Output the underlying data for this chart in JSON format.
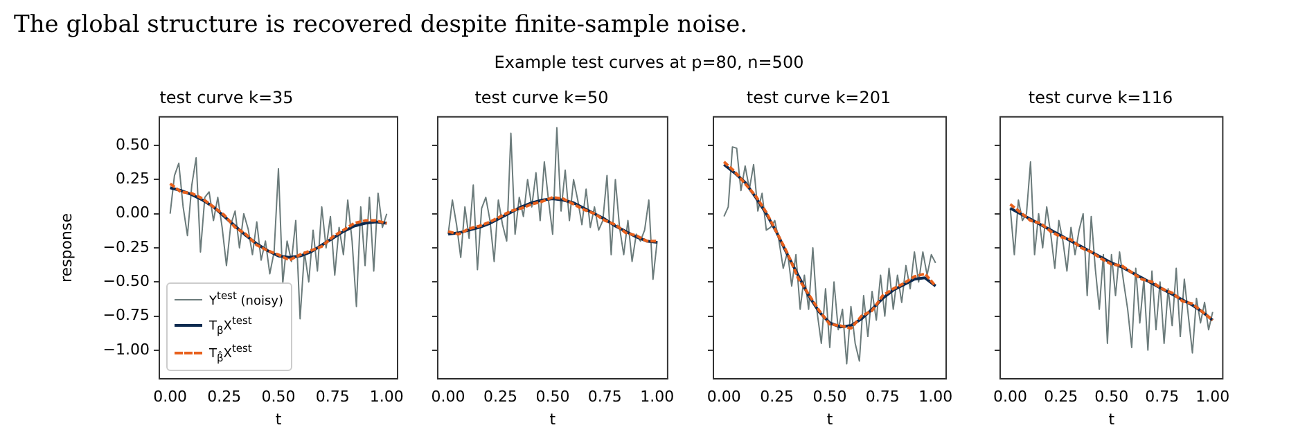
{
  "chart_data": [
    {
      "type": "line",
      "title": "test curve k=35",
      "xlabel": "t",
      "ylabel": "response",
      "legend": "bottom left",
      "annotations": [
        "The global structure is recovered despite finite-sample noise.",
        "Example test curves at p=80, n=500"
      ],
      "xlim": [
        -0.05,
        1.05
      ],
      "ylim": [
        -1.21,
        0.71
      ],
      "xticks": [
        {
          "value": 0,
          "label": "0.00"
        },
        {
          "value": 0.25,
          "label": "0.25"
        },
        {
          "value": 0.5,
          "label": "0.50"
        },
        {
          "value": 0.75,
          "label": "0.75"
        },
        {
          "value": 1,
          "label": "1.00"
        }
      ],
      "yticks": [
        {
          "value": -1,
          "label": "−1.00"
        },
        {
          "value": -0.75,
          "label": "−0.75"
        },
        {
          "value": -0.5,
          "label": "−0.50"
        },
        {
          "value": -0.25,
          "label": "−0.25"
        },
        {
          "value": 0,
          "label": "0.00"
        },
        {
          "value": 0.25,
          "label": "0.25"
        },
        {
          "value": 0.5,
          "label": "0.50"
        }
      ],
      "series": [
        {
          "name": "Y$^{test}$ (noisy)",
          "color": "#6b7b7b",
          "x": [
            0,
            0.02,
            0.04,
            0.06,
            0.08,
            0.1,
            0.12,
            0.14,
            0.16,
            0.18,
            0.2,
            0.22,
            0.24,
            0.26,
            0.28,
            0.3,
            0.32,
            0.34,
            0.36,
            0.38,
            0.4,
            0.42,
            0.44,
            0.46,
            0.48,
            0.5,
            0.52,
            0.54,
            0.56,
            0.58,
            0.6,
            0.62,
            0.64,
            0.66,
            0.68,
            0.7,
            0.72,
            0.74,
            0.76,
            0.78,
            0.8,
            0.82,
            0.84,
            0.86,
            0.88,
            0.9,
            0.92,
            0.94,
            0.96,
            0.98,
            1
          ],
          "values": [
            0.0,
            0.28,
            0.37,
            0.05,
            -0.16,
            0.21,
            0.41,
            -0.28,
            0.12,
            0.16,
            -0.05,
            0.12,
            -0.1,
            -0.38,
            -0.08,
            0.02,
            -0.25,
            0.0,
            -0.11,
            -0.3,
            -0.06,
            -0.34,
            -0.2,
            -0.44,
            -0.28,
            0.33,
            -0.51,
            -0.2,
            -0.35,
            -0.05,
            -0.77,
            -0.28,
            -0.5,
            -0.12,
            -0.42,
            0.05,
            -0.25,
            -0.02,
            -0.45,
            -0.1,
            -0.3,
            0.1,
            -0.2,
            -0.68,
            0.05,
            -0.38,
            0.12,
            -0.42,
            0.15,
            -0.1,
            0.0
          ]
        },
        {
          "name": "T$_{β}$X$^{test}$",
          "color": "#0d2a4f",
          "x": [
            0,
            0.05,
            0.1,
            0.15,
            0.2,
            0.25,
            0.3,
            0.35,
            0.4,
            0.45,
            0.5,
            0.55,
            0.6,
            0.65,
            0.7,
            0.75,
            0.8,
            0.85,
            0.9,
            0.95,
            1
          ],
          "values": [
            0.19,
            0.17,
            0.14,
            0.1,
            0.05,
            -0.02,
            -0.09,
            -0.16,
            -0.22,
            -0.27,
            -0.31,
            -0.32,
            -0.31,
            -0.28,
            -0.23,
            -0.18,
            -0.13,
            -0.09,
            -0.07,
            -0.06,
            -0.07
          ]
        },
        {
          "name": "T$_{β̂}$X$^{test}$",
          "color": "#e8601c",
          "line_style": "dashed",
          "x": [
            0,
            0.05,
            0.1,
            0.15,
            0.2,
            0.25,
            0.3,
            0.35,
            0.4,
            0.45,
            0.5,
            0.55,
            0.6,
            0.65,
            0.7,
            0.75,
            0.8,
            0.85,
            0.9,
            0.95,
            1
          ],
          "values": [
            0.22,
            0.16,
            0.15,
            0.11,
            0.05,
            -0.01,
            -0.1,
            -0.15,
            -0.23,
            -0.27,
            -0.3,
            -0.34,
            -0.3,
            -0.27,
            -0.24,
            -0.17,
            -0.12,
            -0.07,
            -0.05,
            -0.05,
            -0.07
          ]
        }
      ]
    },
    {
      "type": "line",
      "title": "test curve k=50",
      "xlabel": "t",
      "tick_labels": "x",
      "xlim": [
        -0.05,
        1.05
      ],
      "ylim": [
        -1.21,
        0.71
      ],
      "xticks": [
        {
          "value": 0,
          "label": "0.00"
        },
        {
          "value": 0.25,
          "label": "0.25"
        },
        {
          "value": 0.5,
          "label": "0.50"
        },
        {
          "value": 0.75,
          "label": "0.75"
        },
        {
          "value": 1,
          "label": "1.00"
        }
      ],
      "yticks": [
        {
          "value": -1,
          "label": null
        },
        {
          "value": -0.75,
          "label": null
        },
        {
          "value": -0.5,
          "label": null
        },
        {
          "value": -0.25,
          "label": null
        },
        {
          "value": 0,
          "label": null
        },
        {
          "value": 0.25,
          "label": null
        },
        {
          "value": 0.5,
          "label": null
        }
      ],
      "series": [
        {
          "color": "#6b7b7b",
          "x": [
            0,
            0.02,
            0.04,
            0.06,
            0.08,
            0.1,
            0.12,
            0.14,
            0.16,
            0.18,
            0.2,
            0.22,
            0.24,
            0.26,
            0.28,
            0.3,
            0.32,
            0.34,
            0.36,
            0.38,
            0.4,
            0.42,
            0.44,
            0.46,
            0.48,
            0.5,
            0.52,
            0.54,
            0.56,
            0.58,
            0.6,
            0.62,
            0.64,
            0.66,
            0.68,
            0.7,
            0.72,
            0.74,
            0.76,
            0.78,
            0.8,
            0.82,
            0.84,
            0.86,
            0.88,
            0.9,
            0.92,
            0.94,
            0.96,
            0.98,
            1
          ],
          "values": [
            -0.15,
            0.1,
            -0.08,
            -0.32,
            0.05,
            -0.18,
            0.21,
            -0.41,
            0.04,
            0.12,
            -0.05,
            -0.35,
            0.1,
            -0.08,
            -0.2,
            0.59,
            -0.15,
            0.12,
            -0.02,
            0.25,
            0.05,
            0.3,
            -0.05,
            0.38,
            0.1,
            -0.15,
            0.63,
            0.02,
            0.32,
            -0.05,
            0.25,
            0.1,
            -0.08,
            0.18,
            -0.1,
            0.05,
            -0.12,
            -0.05,
            0.28,
            -0.3,
            0.25,
            -0.1,
            -0.3,
            -0.05,
            -0.35,
            -0.15,
            -0.2,
            -0.12,
            0.1,
            -0.48,
            -0.2
          ]
        },
        {
          "color": "#0d2a4f",
          "x": [
            0,
            0.05,
            0.1,
            0.15,
            0.2,
            0.25,
            0.3,
            0.35,
            0.4,
            0.45,
            0.5,
            0.55,
            0.6,
            0.65,
            0.7,
            0.75,
            0.8,
            0.85,
            0.9,
            0.95,
            1
          ],
          "values": [
            -0.15,
            -0.14,
            -0.12,
            -0.1,
            -0.07,
            -0.03,
            0.01,
            0.05,
            0.08,
            0.1,
            0.11,
            0.1,
            0.08,
            0.04,
            0.0,
            -0.04,
            -0.09,
            -0.13,
            -0.17,
            -0.2,
            -0.21
          ]
        },
        {
          "color": "#e8601c",
          "line_style": "dashed",
          "x": [
            0,
            0.05,
            0.1,
            0.15,
            0.2,
            0.25,
            0.3,
            0.35,
            0.4,
            0.45,
            0.5,
            0.55,
            0.6,
            0.65,
            0.7,
            0.75,
            0.8,
            0.85,
            0.9,
            0.95,
            1
          ],
          "values": [
            -0.13,
            -0.15,
            -0.11,
            -0.09,
            -0.06,
            -0.02,
            0.02,
            0.04,
            0.07,
            0.09,
            0.12,
            0.11,
            0.07,
            0.03,
            0.0,
            -0.05,
            -0.08,
            -0.14,
            -0.16,
            -0.2,
            -0.2
          ]
        }
      ]
    },
    {
      "type": "line",
      "title": "test curve k=201",
      "xlabel": "t",
      "tick_labels": "x",
      "xlim": [
        -0.05,
        1.05
      ],
      "ylim": [
        -1.21,
        0.71
      ],
      "xticks": [
        {
          "value": 0,
          "label": "0.00"
        },
        {
          "value": 0.25,
          "label": "0.25"
        },
        {
          "value": 0.5,
          "label": "0.50"
        },
        {
          "value": 0.75,
          "label": "0.75"
        },
        {
          "value": 1,
          "label": "1.00"
        }
      ],
      "yticks": [
        {
          "value": -1,
          "label": null
        },
        {
          "value": -0.75,
          "label": null
        },
        {
          "value": -0.5,
          "label": null
        },
        {
          "value": -0.25,
          "label": null
        },
        {
          "value": 0,
          "label": null
        },
        {
          "value": 0.25,
          "label": null
        },
        {
          "value": 0.5,
          "label": null
        }
      ],
      "series": [
        {
          "color": "#6b7b7b",
          "x": [
            0,
            0.02,
            0.04,
            0.06,
            0.08,
            0.1,
            0.12,
            0.14,
            0.16,
            0.18,
            0.2,
            0.22,
            0.24,
            0.26,
            0.28,
            0.3,
            0.32,
            0.34,
            0.36,
            0.38,
            0.4,
            0.42,
            0.44,
            0.46,
            0.48,
            0.5,
            0.52,
            0.54,
            0.56,
            0.58,
            0.6,
            0.62,
            0.64,
            0.66,
            0.68,
            0.7,
            0.72,
            0.74,
            0.76,
            0.78,
            0.8,
            0.82,
            0.84,
            0.86,
            0.88,
            0.9,
            0.92,
            0.94,
            0.96,
            0.98,
            1
          ],
          "values": [
            -0.02,
            0.05,
            0.49,
            0.48,
            0.17,
            0.35,
            0.18,
            0.36,
            0.02,
            0.15,
            -0.12,
            -0.1,
            -0.05,
            -0.2,
            -0.4,
            -0.28,
            -0.53,
            -0.3,
            -0.7,
            -0.45,
            -0.7,
            -0.25,
            -0.72,
            -0.95,
            -0.55,
            -0.98,
            -0.5,
            -0.85,
            -0.7,
            -1.1,
            -0.68,
            -0.95,
            -1.08,
            -0.6,
            -0.9,
            -0.57,
            -0.78,
            -0.45,
            -0.75,
            -0.4,
            -0.7,
            -0.45,
            -0.65,
            -0.38,
            -0.55,
            -0.28,
            -0.5,
            -0.28,
            -0.45,
            -0.3,
            -0.36
          ]
        },
        {
          "color": "#0d2a4f",
          "x": [
            0,
            0.05,
            0.1,
            0.15,
            0.2,
            0.25,
            0.3,
            0.35,
            0.4,
            0.45,
            0.5,
            0.55,
            0.6,
            0.65,
            0.7,
            0.75,
            0.8,
            0.85,
            0.9,
            0.95,
            1
          ],
          "values": [
            0.36,
            0.3,
            0.23,
            0.12,
            0.0,
            -0.14,
            -0.3,
            -0.45,
            -0.6,
            -0.72,
            -0.8,
            -0.83,
            -0.82,
            -0.77,
            -0.7,
            -0.62,
            -0.56,
            -0.52,
            -0.48,
            -0.47,
            -0.53
          ]
        },
        {
          "color": "#e8601c",
          "line_style": "dashed",
          "x": [
            0,
            0.05,
            0.1,
            0.15,
            0.2,
            0.25,
            0.3,
            0.35,
            0.4,
            0.45,
            0.5,
            0.55,
            0.6,
            0.65,
            0.7,
            0.75,
            0.8,
            0.85,
            0.9,
            0.95,
            1
          ],
          "values": [
            0.38,
            0.31,
            0.22,
            0.13,
            0.01,
            -0.14,
            -0.29,
            -0.47,
            -0.59,
            -0.71,
            -0.81,
            -0.82,
            -0.84,
            -0.75,
            -0.71,
            -0.6,
            -0.55,
            -0.51,
            -0.46,
            -0.44,
            -0.53
          ]
        }
      ]
    },
    {
      "type": "line",
      "title": "test curve k=116",
      "xlabel": "t",
      "tick_labels": "x",
      "xlim": [
        -0.05,
        1.05
      ],
      "ylim": [
        -1.21,
        0.71
      ],
      "xticks": [
        {
          "value": 0,
          "label": "0.00"
        },
        {
          "value": 0.25,
          "label": "0.25"
        },
        {
          "value": 0.5,
          "label": "0.50"
        },
        {
          "value": 0.75,
          "label": "0.75"
        },
        {
          "value": 1,
          "label": "1.00"
        }
      ],
      "yticks": [
        {
          "value": -1,
          "label": null
        },
        {
          "value": -0.75,
          "label": null
        },
        {
          "value": -0.5,
          "label": null
        },
        {
          "value": -0.25,
          "label": null
        },
        {
          "value": 0,
          "label": null
        },
        {
          "value": 0.25,
          "label": null
        },
        {
          "value": 0.5,
          "label": null
        }
      ],
      "series": [
        {
          "color": "#6b7b7b",
          "x": [
            0,
            0.02,
            0.04,
            0.06,
            0.08,
            0.1,
            0.12,
            0.14,
            0.16,
            0.18,
            0.2,
            0.22,
            0.24,
            0.26,
            0.28,
            0.3,
            0.32,
            0.34,
            0.36,
            0.38,
            0.4,
            0.42,
            0.44,
            0.46,
            0.48,
            0.5,
            0.52,
            0.54,
            0.56,
            0.58,
            0.6,
            0.62,
            0.64,
            0.66,
            0.68,
            0.7,
            0.72,
            0.74,
            0.76,
            0.78,
            0.8,
            0.82,
            0.84,
            0.86,
            0.88,
            0.9,
            0.92,
            0.94,
            0.96,
            0.98,
            1
          ],
          "values": [
            0.04,
            -0.3,
            0.1,
            -0.05,
            0.0,
            0.38,
            -0.3,
            0.0,
            -0.25,
            0.05,
            -0.15,
            -0.4,
            -0.05,
            -0.2,
            -0.42,
            -0.1,
            -0.3,
            -0.12,
            0.0,
            -0.6,
            -0.02,
            -0.4,
            -0.7,
            -0.3,
            -0.95,
            -0.3,
            -0.6,
            -0.28,
            -0.5,
            -0.7,
            -0.98,
            -0.4,
            -0.8,
            -0.48,
            -1.0,
            -0.42,
            -0.85,
            -0.5,
            -0.95,
            -0.55,
            -0.82,
            -0.4,
            -0.9,
            -0.48,
            -0.75,
            -1.02,
            -0.62,
            -0.8,
            -0.65,
            -0.85,
            -0.72
          ]
        },
        {
          "color": "#0d2a4f",
          "x": [
            0,
            0.05,
            0.1,
            0.15,
            0.2,
            0.25,
            0.3,
            0.35,
            0.4,
            0.45,
            0.5,
            0.55,
            0.6,
            0.65,
            0.7,
            0.75,
            0.8,
            0.85,
            0.9,
            0.95,
            1
          ],
          "values": [
            0.04,
            0.0,
            -0.04,
            -0.08,
            -0.12,
            -0.16,
            -0.2,
            -0.24,
            -0.28,
            -0.32,
            -0.36,
            -0.39,
            -0.43,
            -0.47,
            -0.51,
            -0.55,
            -0.59,
            -0.63,
            -0.67,
            -0.72,
            -0.78
          ]
        },
        {
          "color": "#e8601c",
          "line_style": "dashed",
          "x": [
            0,
            0.05,
            0.1,
            0.15,
            0.2,
            0.25,
            0.3,
            0.35,
            0.4,
            0.45,
            0.5,
            0.55,
            0.6,
            0.65,
            0.7,
            0.75,
            0.8,
            0.85,
            0.9,
            0.95,
            1
          ],
          "values": [
            0.07,
            0.01,
            -0.05,
            -0.07,
            -0.13,
            -0.17,
            -0.19,
            -0.25,
            -0.28,
            -0.33,
            -0.37,
            -0.38,
            -0.43,
            -0.48,
            -0.5,
            -0.55,
            -0.58,
            -0.64,
            -0.66,
            -0.72,
            -0.78
          ]
        }
      ]
    }
  ]
}
